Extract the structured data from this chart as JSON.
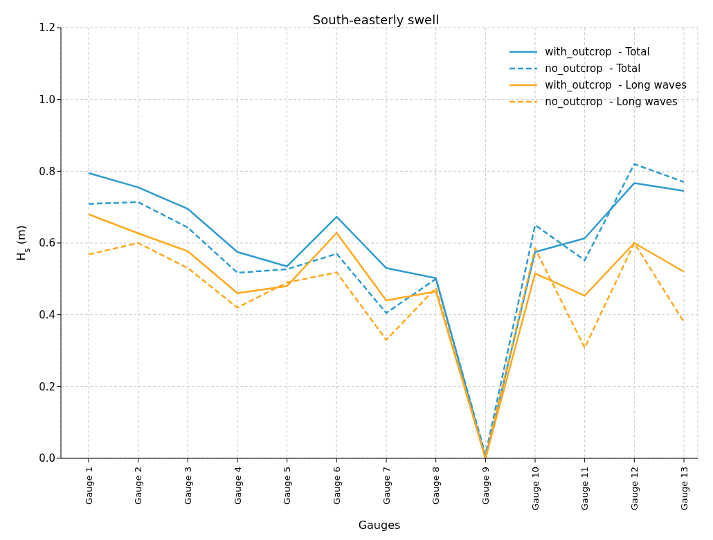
{
  "chart_data": {
    "type": "line",
    "title": "South-easterly swell",
    "xlabel": "Gauges",
    "ylabel": "H$_{s}$ (m)",
    "categories": [
      "Gauge 1",
      "Gauge 2",
      "Gauge 3",
      "Gauge 4",
      "Gauge 5",
      "Gauge 6",
      "Gauge 7",
      "Gauge 8",
      "Gauge 9",
      "Gauge 10",
      "Gauge 11",
      "Gauge 12",
      "Gauge 13"
    ],
    "ylim": [
      0,
      1.2
    ],
    "yticks": [
      {
        "value": 0,
        "label": "0.0"
      },
      {
        "value": 0.2,
        "label": "0.2"
      },
      {
        "value": 0.4,
        "label": "0.4"
      },
      {
        "value": 0.6,
        "label": "0.6"
      },
      {
        "value": 0.8,
        "label": "0.8"
      },
      {
        "value": 1,
        "label": "1.0"
      },
      {
        "value": 1.2,
        "label": "1.2"
      }
    ],
    "grid": true,
    "legend": "top right",
    "marker": "none",
    "series": [
      {
        "name": "with_outcrop  - Total",
        "color": "#2e9bd0",
        "line_style": "solid",
        "values": [
          0.795,
          0.755,
          0.695,
          0.575,
          0.535,
          0.673,
          0.53,
          0.502,
          0.0,
          0.575,
          0.613,
          0.767,
          0.745
        ]
      },
      {
        "name": "no_outcrop  - Total",
        "color": "#2e9bd0",
        "line_style": "dashed",
        "values": [
          0.709,
          0.714,
          0.643,
          0.517,
          0.527,
          0.57,
          0.405,
          0.5,
          0.01,
          0.65,
          0.552,
          0.82,
          0.77
        ]
      },
      {
        "name": "with_outcrop  - Long waves",
        "color": "#ffa81e",
        "line_style": "solid",
        "values": [
          0.68,
          0.627,
          0.577,
          0.46,
          0.48,
          0.628,
          0.44,
          0.465,
          0.0,
          0.515,
          0.453,
          0.6,
          0.52
        ]
      },
      {
        "name": "no_outcrop  - Long waves",
        "color": "#ffa81e",
        "line_style": "dashed",
        "values": [
          0.568,
          0.6,
          0.53,
          0.42,
          0.49,
          0.518,
          0.33,
          0.475,
          0.0,
          0.585,
          0.308,
          0.6,
          0.38
        ]
      }
    ]
  }
}
